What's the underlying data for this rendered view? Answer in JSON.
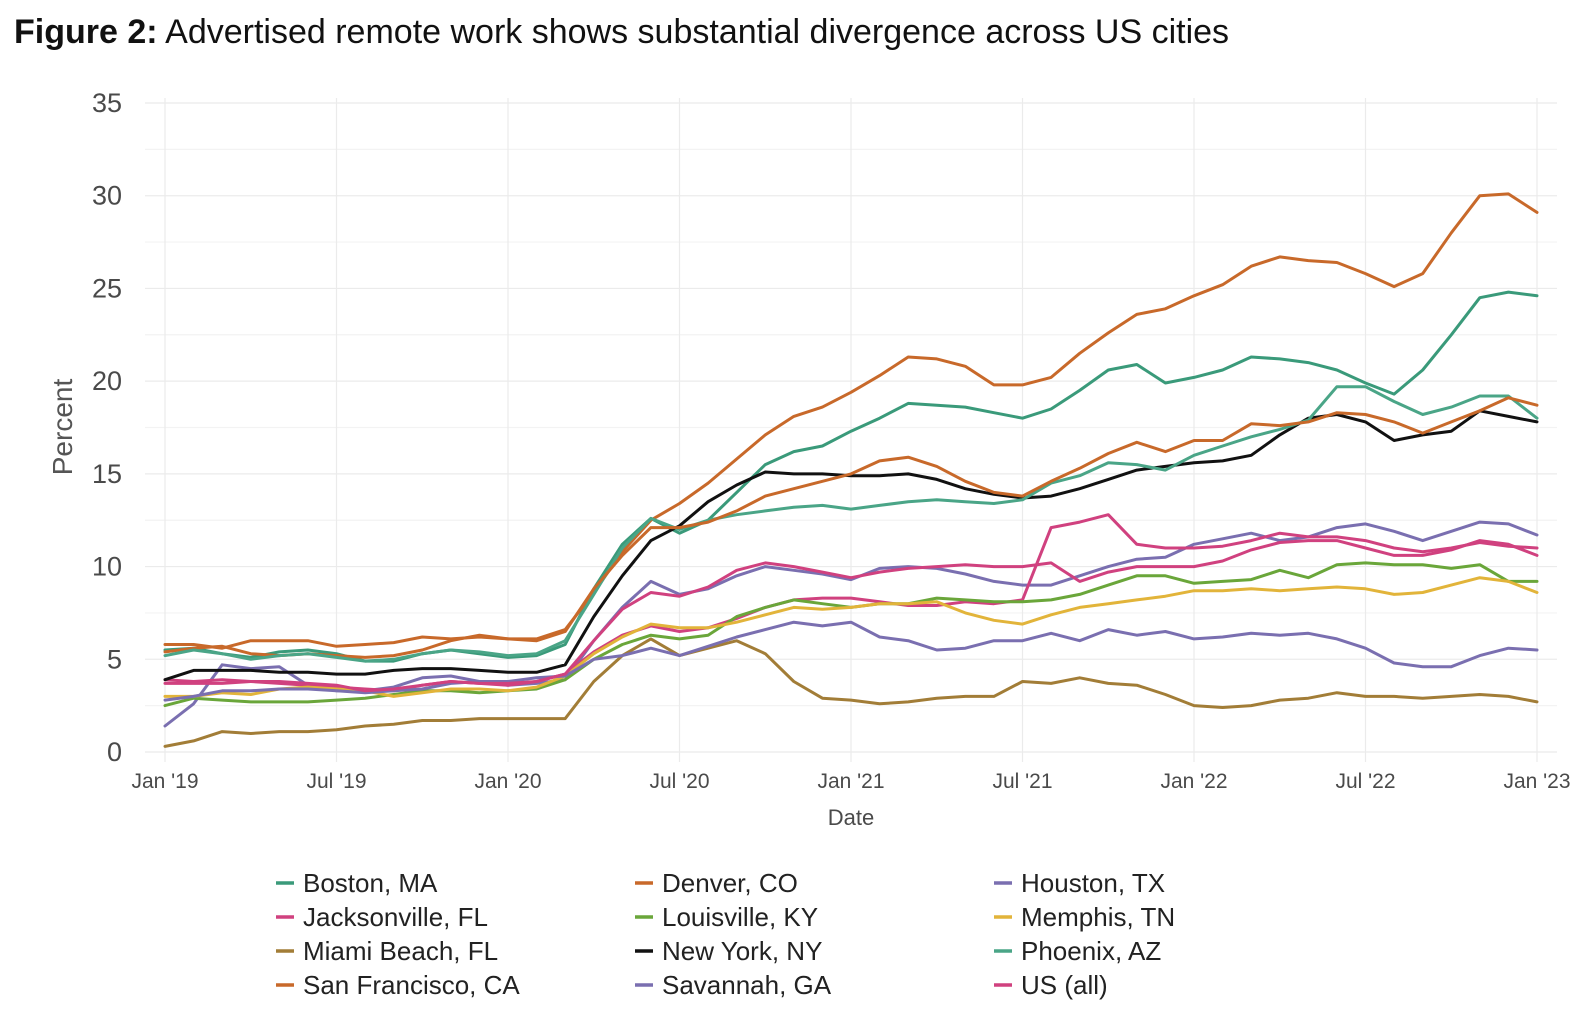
{
  "title": {
    "lead": "Figure 2:",
    "text": "Advertised remote work shows substantial divergence across US cities"
  },
  "chart_data": {
    "type": "line",
    "xlabel": "Date",
    "ylabel": "Percent",
    "ylim": [
      0,
      35
    ],
    "yticks": [
      0,
      5,
      10,
      15,
      20,
      25,
      30,
      35
    ],
    "xlim": [
      "2019-01",
      "2023-01"
    ],
    "xticks": [
      {
        "date": "2019-01",
        "label": "Jan '19"
      },
      {
        "date": "2019-07",
        "label": "Jul '19"
      },
      {
        "date": "2020-01",
        "label": "Jan '20"
      },
      {
        "date": "2020-07",
        "label": "Jul '20"
      },
      {
        "date": "2021-01",
        "label": "Jan '21"
      },
      {
        "date": "2021-07",
        "label": "Jul '21"
      },
      {
        "date": "2022-01",
        "label": "Jan '22"
      },
      {
        "date": "2022-07",
        "label": "Jul '22"
      },
      {
        "date": "2023-01",
        "label": "Jan '23"
      }
    ],
    "grid": true,
    "legend_position": "bottom",
    "x": [
      "2019-01",
      "2019-02",
      "2019-03",
      "2019-04",
      "2019-05",
      "2019-06",
      "2019-07",
      "2019-08",
      "2019-09",
      "2019-10",
      "2019-11",
      "2019-12",
      "2020-01",
      "2020-02",
      "2020-03",
      "2020-04",
      "2020-05",
      "2020-06",
      "2020-07",
      "2020-08",
      "2020-09",
      "2020-10",
      "2020-11",
      "2020-12",
      "2021-01",
      "2021-02",
      "2021-03",
      "2021-04",
      "2021-05",
      "2021-06",
      "2021-07",
      "2021-08",
      "2021-09",
      "2021-10",
      "2021-11",
      "2021-12",
      "2022-01",
      "2022-02",
      "2022-03",
      "2022-04",
      "2022-05",
      "2022-06",
      "2022-07",
      "2022-08",
      "2022-09",
      "2022-10",
      "2022-11",
      "2022-12",
      "2023-01"
    ],
    "series": [
      {
        "name": "Boston, MA",
        "color": "#3a9a7a",
        "values": [
          5.5,
          5.6,
          5.3,
          5.1,
          5.4,
          5.5,
          5.3,
          4.9,
          4.9,
          5.3,
          5.5,
          5.3,
          5.1,
          5.2,
          5.8,
          8.8,
          11.2,
          12.6,
          11.8,
          12.5,
          14.0,
          15.5,
          16.2,
          16.5,
          17.3,
          18.0,
          18.8,
          18.7,
          18.6,
          18.3,
          18.0,
          18.5,
          19.5,
          20.6,
          20.9,
          19.9,
          20.2,
          20.6,
          21.3,
          21.2,
          21.0,
          20.6,
          19.9,
          19.3,
          20.6,
          22.5,
          24.5,
          24.8,
          24.6
        ]
      },
      {
        "name": "Denver, CO",
        "color": "#c8692a",
        "values": [
          5.4,
          5.6,
          5.7,
          5.3,
          5.2,
          5.3,
          5.2,
          5.1,
          5.2,
          5.5,
          6.0,
          6.3,
          6.1,
          6.1,
          6.6,
          8.6,
          10.8,
          12.5,
          13.4,
          14.5,
          15.8,
          17.1,
          18.1,
          18.6,
          19.4,
          20.3,
          21.3,
          21.2,
          20.8,
          19.8,
          19.8,
          20.2,
          21.5,
          22.6,
          23.6,
          23.9,
          24.6,
          25.2,
          26.2,
          26.7,
          26.5,
          26.4,
          25.8,
          25.1,
          25.8,
          28.0,
          30.0,
          30.1,
          29.1
        ]
      },
      {
        "name": "Houston, TX",
        "color": "#7a6fb0",
        "values": [
          1.4,
          2.6,
          4.7,
          4.5,
          4.6,
          3.6,
          3.3,
          3.3,
          3.5,
          4.0,
          4.1,
          3.8,
          3.6,
          3.7,
          3.9,
          6.0,
          7.8,
          9.2,
          8.5,
          8.8,
          9.5,
          10.0,
          9.8,
          9.6,
          9.3,
          9.9,
          10.0,
          9.9,
          9.6,
          9.2,
          9.0,
          9.0,
          9.5,
          10.0,
          10.4,
          10.5,
          11.2,
          11.5,
          11.8,
          11.4,
          11.6,
          12.1,
          12.3,
          11.9,
          11.4,
          11.9,
          12.4,
          12.3,
          11.7
        ]
      },
      {
        "name": "Jacksonville, FL",
        "color": "#d0417f",
        "values": [
          3.9,
          3.8,
          3.9,
          3.8,
          3.7,
          3.6,
          3.5,
          3.4,
          3.3,
          3.6,
          3.8,
          3.7,
          3.6,
          3.8,
          4.2,
          5.4,
          6.3,
          6.8,
          6.5,
          6.7,
          7.2,
          7.8,
          8.2,
          8.3,
          8.3,
          8.1,
          7.9,
          7.9,
          8.1,
          8.0,
          8.2,
          12.1,
          12.4,
          12.8,
          11.2,
          11.0,
          11.0,
          11.1,
          11.4,
          11.8,
          11.6,
          11.6,
          11.4,
          11.0,
          10.8,
          11.0,
          11.3,
          11.1,
          11.0
        ]
      },
      {
        "name": "Louisville, KY",
        "color": "#6aa63a",
        "values": [
          2.5,
          2.9,
          2.8,
          2.7,
          2.7,
          2.7,
          2.8,
          2.9,
          3.1,
          3.3,
          3.3,
          3.2,
          3.3,
          3.4,
          3.9,
          5.0,
          5.8,
          6.3,
          6.1,
          6.3,
          7.3,
          7.8,
          8.2,
          8.0,
          7.8,
          8.0,
          8.0,
          8.3,
          8.2,
          8.1,
          8.1,
          8.2,
          8.5,
          9.0,
          9.5,
          9.5,
          9.1,
          9.2,
          9.3,
          9.8,
          9.4,
          10.1,
          10.2,
          10.1,
          10.1,
          9.9,
          10.1,
          9.2,
          9.2
        ]
      },
      {
        "name": "Memphis, TN",
        "color": "#e2b43a",
        "values": [
          3.0,
          3.0,
          3.2,
          3.1,
          3.4,
          3.5,
          3.4,
          3.3,
          3.0,
          3.2,
          3.4,
          3.4,
          3.3,
          3.5,
          4.1,
          5.3,
          6.2,
          6.9,
          6.7,
          6.7,
          7.0,
          7.4,
          7.8,
          7.7,
          7.8,
          8.0,
          8.0,
          8.1,
          7.5,
          7.1,
          6.9,
          7.4,
          7.8,
          8.0,
          8.2,
          8.4,
          8.7,
          8.7,
          8.8,
          8.7,
          8.8,
          8.9,
          8.8,
          8.5,
          8.6,
          9.0,
          9.4,
          9.2,
          8.6
        ]
      },
      {
        "name": "Miami Beach, FL",
        "color": "#a27d37",
        "values": [
          0.3,
          0.6,
          1.1,
          1.0,
          1.1,
          1.1,
          1.2,
          1.4,
          1.5,
          1.7,
          1.7,
          1.8,
          1.8,
          1.8,
          1.8,
          3.8,
          5.2,
          6.1,
          5.2,
          5.6,
          6.0,
          5.3,
          3.8,
          2.9,
          2.8,
          2.6,
          2.7,
          2.9,
          3.0,
          3.0,
          3.8,
          3.7,
          4.0,
          3.7,
          3.6,
          3.1,
          2.5,
          2.4,
          2.5,
          2.8,
          2.9,
          3.2,
          3.0,
          3.0,
          2.9,
          3.0,
          3.1,
          3.0,
          2.7
        ]
      },
      {
        "name": "New York, NY",
        "color": "#111111",
        "values": [
          3.9,
          4.4,
          4.4,
          4.4,
          4.3,
          4.3,
          4.2,
          4.2,
          4.4,
          4.5,
          4.5,
          4.4,
          4.3,
          4.3,
          4.7,
          7.3,
          9.5,
          11.4,
          12.2,
          13.5,
          14.4,
          15.1,
          15.0,
          15.0,
          14.9,
          14.9,
          15.0,
          14.7,
          14.2,
          13.9,
          13.7,
          13.8,
          14.2,
          14.7,
          15.2,
          15.4,
          15.6,
          15.7,
          16.0,
          17.1,
          18.0,
          18.2,
          17.8,
          16.8,
          17.1,
          17.3,
          18.4,
          18.1,
          17.8
        ]
      },
      {
        "name": "Phoenix, AZ",
        "color": "#4aa587",
        "values": [
          5.2,
          5.5,
          5.3,
          5.0,
          5.2,
          5.3,
          5.1,
          4.9,
          5.0,
          5.3,
          5.5,
          5.4,
          5.2,
          5.3,
          6.0,
          8.5,
          11.0,
          12.6,
          12.0,
          12.5,
          12.8,
          13.0,
          13.2,
          13.3,
          13.1,
          13.3,
          13.5,
          13.6,
          13.5,
          13.4,
          13.6,
          14.5,
          14.9,
          15.6,
          15.5,
          15.2,
          16.0,
          16.5,
          17.0,
          17.4,
          17.9,
          19.7,
          19.7,
          18.9,
          18.2,
          18.6,
          19.2,
          19.2,
          18.0
        ]
      },
      {
        "name": "San Francisco, CA",
        "color": "#c8692a",
        "values": [
          5.8,
          5.8,
          5.6,
          6.0,
          6.0,
          6.0,
          5.7,
          5.8,
          5.9,
          6.2,
          6.1,
          6.2,
          6.1,
          6.0,
          6.5,
          8.8,
          10.6,
          12.1,
          12.1,
          12.4,
          13.0,
          13.8,
          14.2,
          14.6,
          15.0,
          15.7,
          15.9,
          15.4,
          14.6,
          14.0,
          13.8,
          14.6,
          15.3,
          16.1,
          16.7,
          16.2,
          16.8,
          16.8,
          17.7,
          17.6,
          17.8,
          18.3,
          18.2,
          17.8,
          17.2,
          17.8,
          18.4,
          19.1,
          18.7
        ]
      },
      {
        "name": "Savannah, GA",
        "color": "#7a6fb0",
        "values": [
          2.8,
          3.0,
          3.3,
          3.3,
          3.4,
          3.4,
          3.3,
          3.2,
          3.3,
          3.4,
          3.7,
          3.8,
          3.8,
          4.0,
          4.1,
          5.0,
          5.2,
          5.6,
          5.2,
          5.7,
          6.2,
          6.6,
          7.0,
          6.8,
          7.0,
          6.2,
          6.0,
          5.5,
          5.6,
          6.0,
          6.0,
          6.4,
          6.0,
          6.6,
          6.3,
          6.5,
          6.1,
          6.2,
          6.4,
          6.3,
          6.4,
          6.1,
          5.6,
          4.8,
          4.6,
          4.6,
          5.2,
          5.6,
          5.5
        ]
      },
      {
        "name": "US (all)",
        "color": "#d0417f",
        "values": [
          3.7,
          3.7,
          3.7,
          3.8,
          3.8,
          3.7,
          3.6,
          3.3,
          3.4,
          3.6,
          3.8,
          3.7,
          3.7,
          3.8,
          4.2,
          6.0,
          7.7,
          8.6,
          8.4,
          8.9,
          9.8,
          10.2,
          10.0,
          9.7,
          9.4,
          9.7,
          9.9,
          10.0,
          10.1,
          10.0,
          10.0,
          10.2,
          9.2,
          9.7,
          10.0,
          10.0,
          10.0,
          10.3,
          10.9,
          11.3,
          11.4,
          11.4,
          11.0,
          10.6,
          10.6,
          10.9,
          11.4,
          11.2,
          10.6
        ]
      }
    ]
  }
}
